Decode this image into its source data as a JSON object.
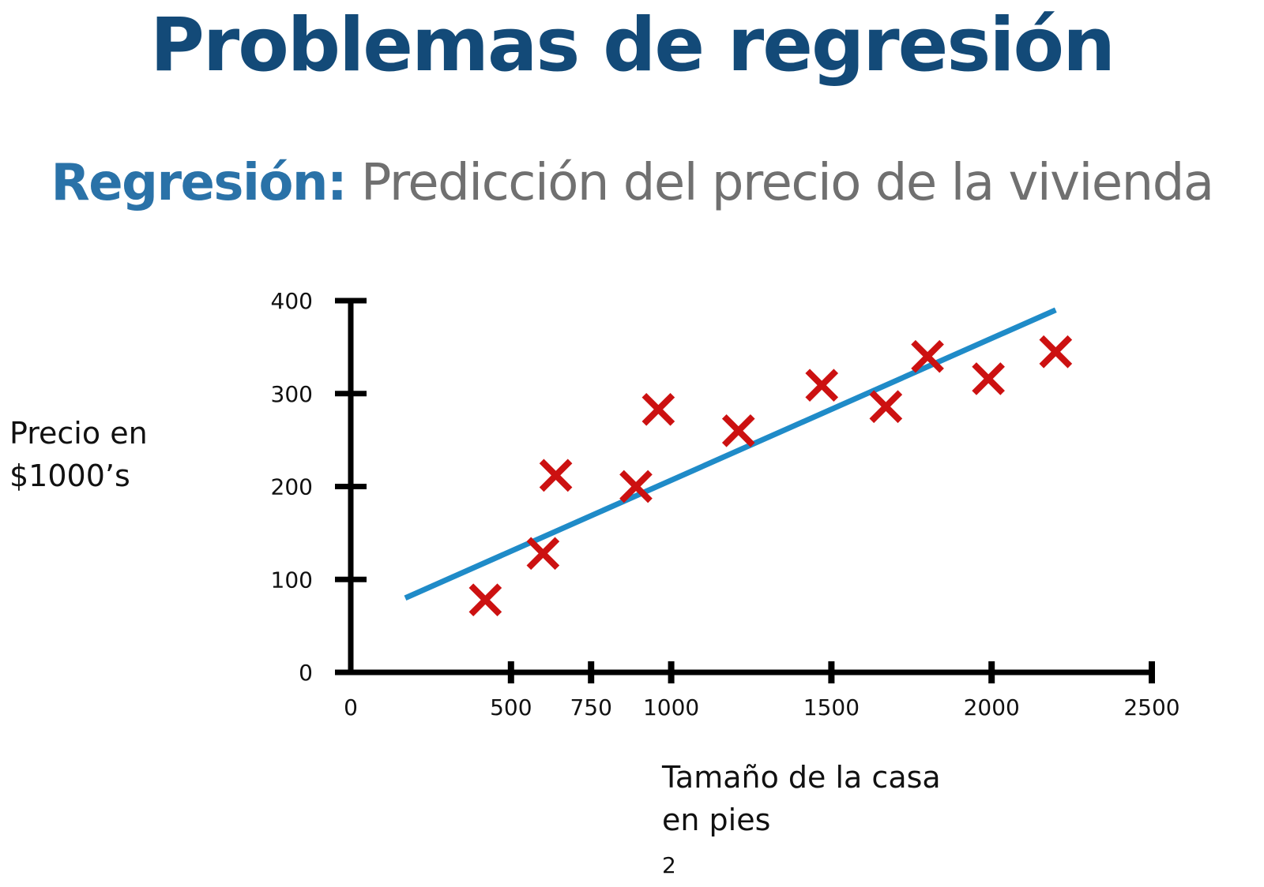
{
  "slide": {
    "title": "Problemas de regresión",
    "subtitle_prefix": "Regresión:",
    "subtitle_text": "Predicción del precio de la vivienda"
  },
  "chart_data": {
    "type": "scatter",
    "ylabel_line1": "Precio en",
    "ylabel_line2": "$1000’s",
    "xlabel_line1": "Tamaño de la casa",
    "xlabel_line2": "en pies",
    "xlabel_unit_suffix": "2",
    "x_ticks": [
      "0",
      "500",
      "750",
      "1000",
      "1500",
      "2000",
      "2500"
    ],
    "y_ticks": [
      "0",
      "100",
      "200",
      "300",
      "400"
    ],
    "xlim": [
      0,
      2500
    ],
    "ylim": [
      0,
      400
    ],
    "series": [
      {
        "marker": "x",
        "color": "#cc1111",
        "points": [
          {
            "x": 420,
            "y": 78
          },
          {
            "x": 600,
            "y": 128
          },
          {
            "x": 640,
            "y": 212
          },
          {
            "x": 890,
            "y": 200
          },
          {
            "x": 960,
            "y": 283
          },
          {
            "x": 1210,
            "y": 260
          },
          {
            "x": 1470,
            "y": 309
          },
          {
            "x": 1670,
            "y": 286
          },
          {
            "x": 1800,
            "y": 340
          },
          {
            "x": 1990,
            "y": 316
          },
          {
            "x": 2200,
            "y": 345
          }
        ]
      }
    ],
    "fit_line": {
      "color": "#1f8bc8",
      "points": [
        {
          "x": 170,
          "y": 80
        },
        {
          "x": 2200,
          "y": 390
        }
      ]
    },
    "grid": false,
    "legend": "none"
  }
}
